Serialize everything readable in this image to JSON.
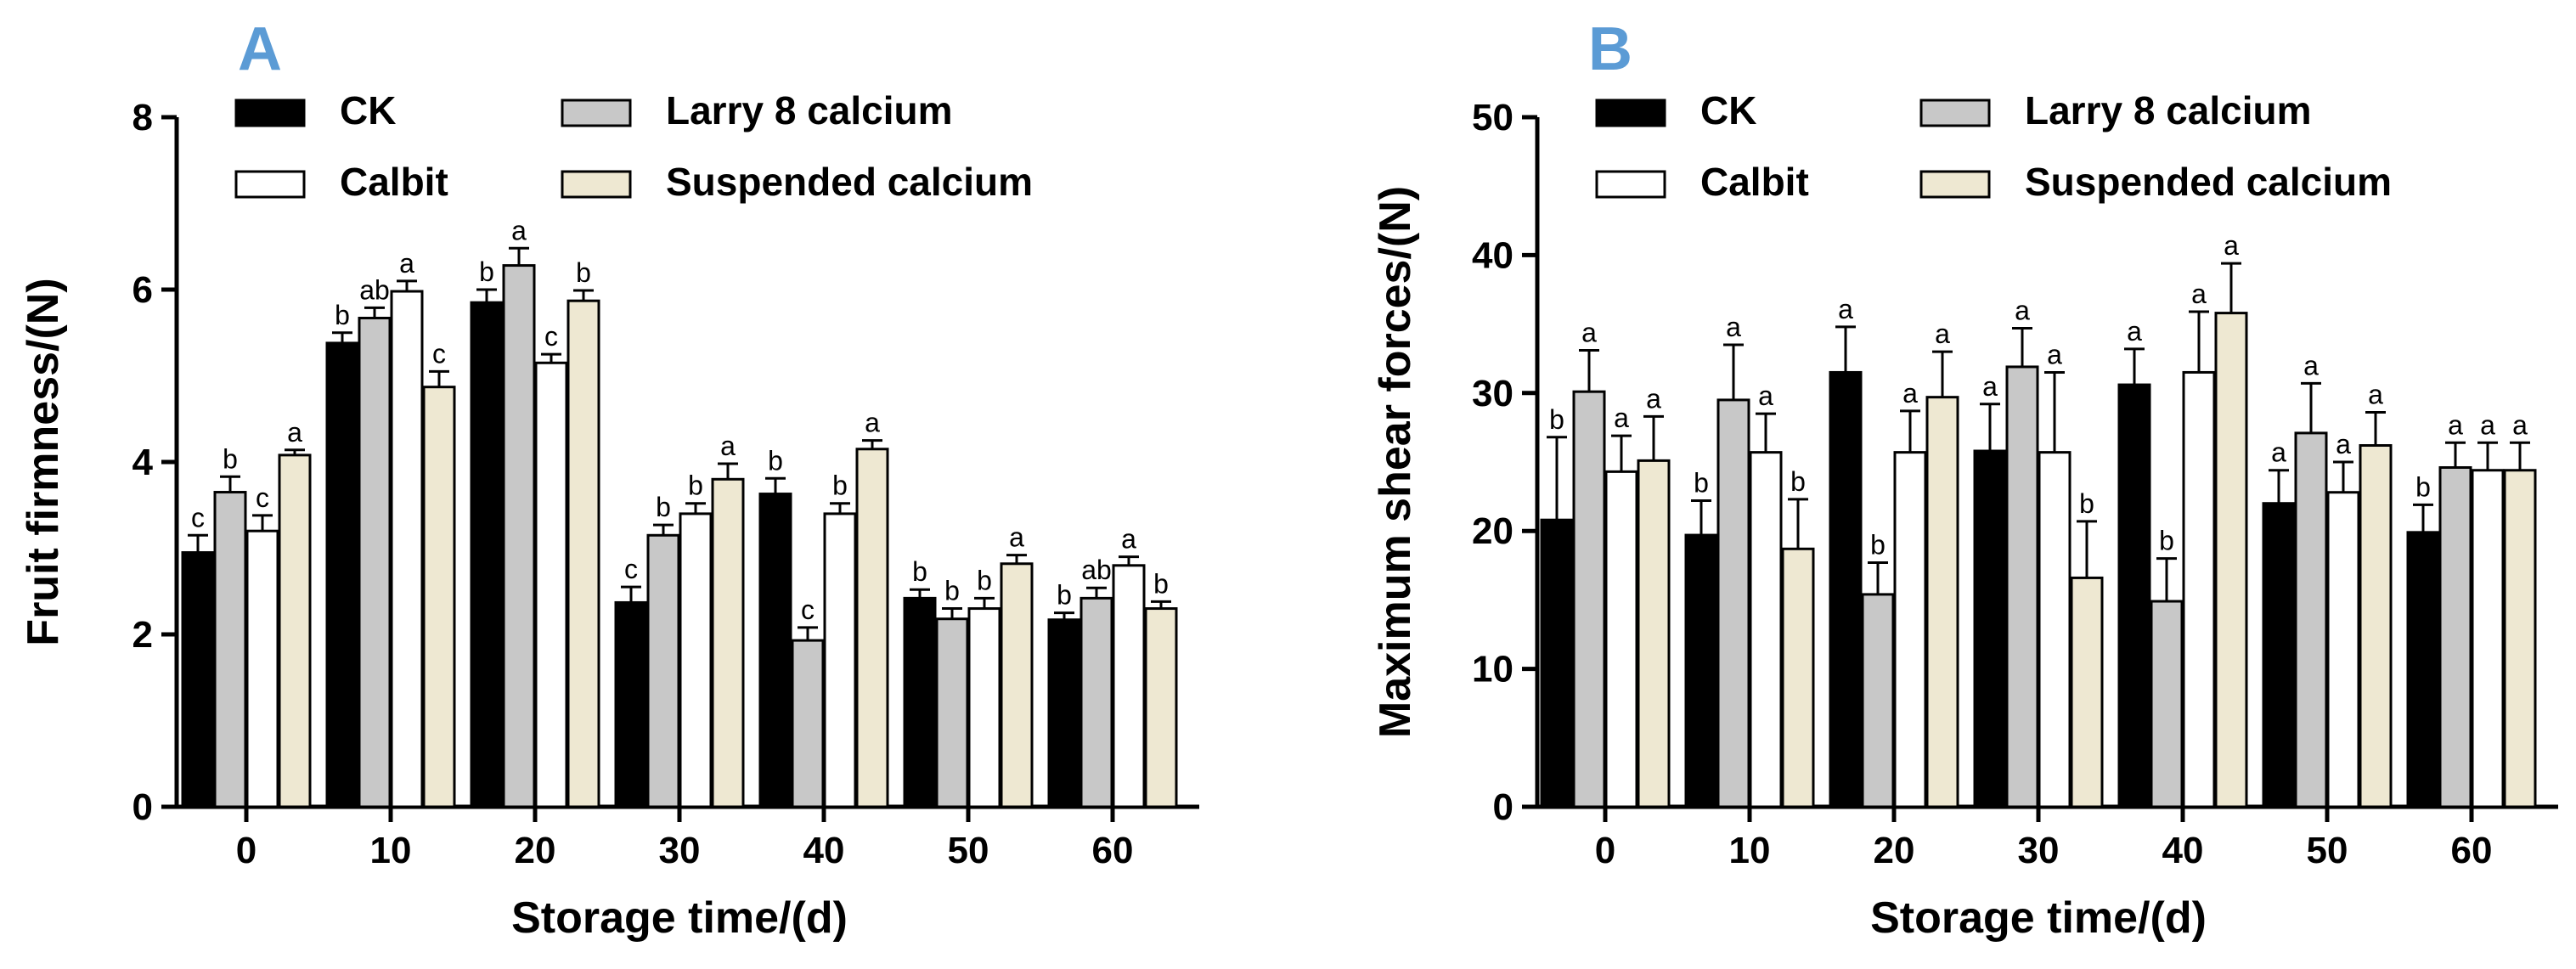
{
  "colors": {
    "panel_letter": "#5B9BD5",
    "CK": "#000000",
    "Larry 8 calcium": "#c8c8c8",
    "Calbit": "#ffffff",
    "Suspended calcium": "#eee8d2",
    "stroke": "#000000"
  },
  "chart_data": [
    {
      "id": "A",
      "type": "bar",
      "panel_label": "A",
      "title": "",
      "xlabel": "Storage time/(d)",
      "ylabel": "Fruit firmness/(N)",
      "ylim": [
        0,
        8
      ],
      "yticks": [
        0,
        2,
        4,
        6,
        8
      ],
      "categories": [
        "0",
        "10",
        "20",
        "30",
        "40",
        "50",
        "60"
      ],
      "legend": [
        "CK",
        "Larry 8 calcium",
        "Calbit",
        "Suspended calcium"
      ],
      "series": [
        {
          "name": "CK",
          "values": [
            2.95,
            5.38,
            5.85,
            2.37,
            3.63,
            2.42,
            2.17
          ],
          "errors": [
            0.2,
            0.12,
            0.15,
            0.18,
            0.18,
            0.1,
            0.08
          ],
          "letters": [
            "c",
            "b",
            "b",
            "c",
            "b",
            "b",
            "b"
          ]
        },
        {
          "name": "Larry 8 calcium",
          "values": [
            3.65,
            5.67,
            6.28,
            3.15,
            1.93,
            2.18,
            2.42
          ],
          "errors": [
            0.18,
            0.12,
            0.2,
            0.12,
            0.15,
            0.12,
            0.12
          ],
          "letters": [
            "b",
            "ab",
            "a",
            "b",
            "c",
            "b",
            "ab"
          ]
        },
        {
          "name": "Calbit",
          "values": [
            3.2,
            5.98,
            5.15,
            3.4,
            3.4,
            2.3,
            2.8
          ],
          "errors": [
            0.18,
            0.12,
            0.1,
            0.12,
            0.12,
            0.12,
            0.1
          ],
          "letters": [
            "c",
            "a",
            "c",
            "b",
            "b",
            "b",
            "a"
          ]
        },
        {
          "name": "Suspended calcium",
          "values": [
            4.08,
            4.87,
            5.87,
            3.8,
            4.15,
            2.82,
            2.3
          ],
          "errors": [
            0.06,
            0.18,
            0.12,
            0.18,
            0.1,
            0.1,
            0.08
          ],
          "letters": [
            "a",
            "c",
            "b",
            "a",
            "a",
            "a",
            "b"
          ]
        }
      ]
    },
    {
      "id": "B",
      "type": "bar",
      "panel_label": "B",
      "title": "",
      "xlabel": "Storage time/(d)",
      "ylabel": "Maximum shear forces/(N)",
      "ylim": [
        0,
        50
      ],
      "yticks": [
        0,
        10,
        20,
        30,
        40,
        50
      ],
      "categories": [
        "0",
        "10",
        "20",
        "30",
        "40",
        "50",
        "60"
      ],
      "legend": [
        "CK",
        "Larry 8 calcium",
        "Calbit",
        "Suspended calcium"
      ],
      "series": [
        {
          "name": "CK",
          "values": [
            20.8,
            19.7,
            31.5,
            25.8,
            30.6,
            22.0,
            19.9
          ],
          "errors": [
            6.0,
            2.5,
            3.3,
            3.4,
            2.6,
            2.4,
            2.0
          ],
          "letters": [
            "b",
            "b",
            "a",
            "a",
            "a",
            "a",
            "b"
          ]
        },
        {
          "name": "Larry 8 calcium",
          "values": [
            30.1,
            29.5,
            15.4,
            31.9,
            14.9,
            27.1,
            24.6
          ],
          "errors": [
            3.0,
            4.0,
            2.3,
            2.8,
            3.1,
            3.6,
            1.8
          ],
          "letters": [
            "a",
            "a",
            "b",
            "a",
            "b",
            "a",
            "a"
          ]
        },
        {
          "name": "Calbit",
          "values": [
            24.3,
            25.7,
            25.7,
            25.7,
            31.5,
            22.8,
            24.4
          ],
          "errors": [
            2.6,
            2.8,
            3.0,
            5.8,
            4.4,
            2.2,
            2.0
          ],
          "letters": [
            "a",
            "a",
            "a",
            "a",
            "a",
            "a",
            "a"
          ]
        },
        {
          "name": "Suspended calcium",
          "values": [
            25.1,
            18.7,
            29.7,
            16.6,
            35.8,
            26.2,
            24.4
          ],
          "errors": [
            3.2,
            3.6,
            3.3,
            4.1,
            3.6,
            2.4,
            2.0
          ],
          "letters": [
            "a",
            "b",
            "a",
            "b",
            "a",
            "a",
            "a"
          ]
        }
      ]
    }
  ]
}
